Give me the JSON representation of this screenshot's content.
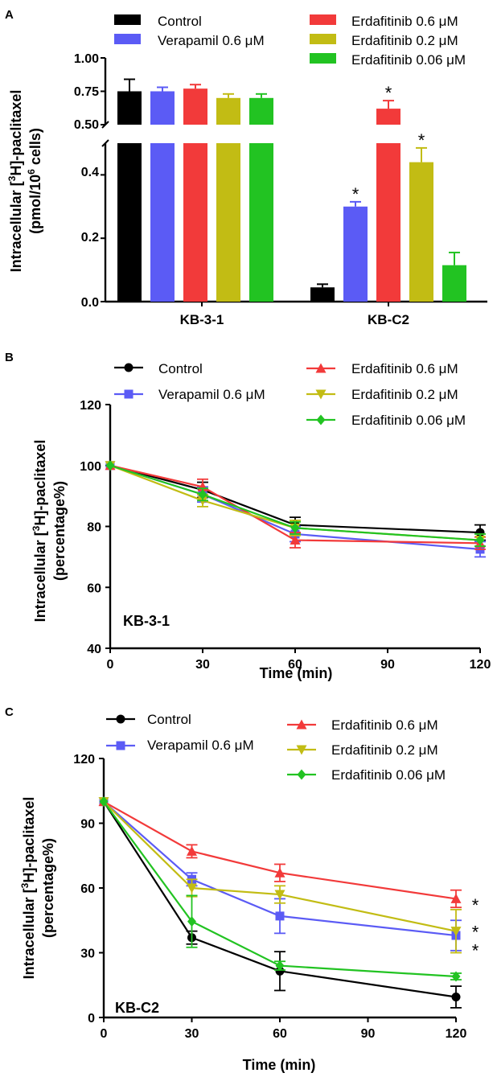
{
  "panel_labels": [
    "A",
    "B",
    "C"
  ],
  "colors": {
    "control": "#000000",
    "verapamil": "#5b5bf5",
    "erda06": "#f23a3a",
    "erda02": "#c2bc14",
    "erda006": "#22c322"
  },
  "chart_data": [
    {
      "type": "bar",
      "panel": "A",
      "ylabel_line1": "Intracellular [",
      "ylabel_sup1": "3",
      "ylabel_line1b": "H]-paclitaxel",
      "ylabel_line2a": "(pmol/10",
      "ylabel_sup2": "6",
      "ylabel_line2b": " cells)",
      "categories": [
        "KB-3-1",
        "KB-C2"
      ],
      "legend": [
        {
          "name": "Control",
          "key": "control"
        },
        {
          "name": "Verapamil 0.6 μM",
          "key": "verapamil"
        },
        {
          "name": "Erdafitinib 0.6 μM",
          "key": "erda06"
        },
        {
          "name": "Erdafitinib 0.2 μM",
          "key": "erda02"
        },
        {
          "name": "Erdafitinib 0.06 μM",
          "key": "erda006"
        }
      ],
      "series": [
        {
          "name": "Control",
          "key": "control",
          "values": [
            0.75,
            0.045
          ],
          "errors": [
            0.09,
            0.01
          ]
        },
        {
          "name": "Verapamil 0.6 μM",
          "key": "verapamil",
          "values": [
            0.75,
            0.3
          ],
          "errors": [
            0.03,
            0.015
          ]
        },
        {
          "name": "Erdafitinib 0.6 μM",
          "key": "erda06",
          "values": [
            0.77,
            0.62
          ],
          "errors": [
            0.03,
            0.06
          ]
        },
        {
          "name": "Erdafitinib 0.2 μM",
          "key": "erda02",
          "values": [
            0.7,
            0.44
          ],
          "errors": [
            0.03,
            0.045
          ]
        },
        {
          "name": "Erdafitinib 0.06 μM",
          "key": "erda006",
          "values": [
            0.7,
            0.115
          ],
          "errors": [
            0.03,
            0.04
          ]
        }
      ],
      "significant": [
        [
          false,
          false
        ],
        [
          false,
          true
        ],
        [
          false,
          true
        ],
        [
          false,
          true
        ],
        [
          false,
          false
        ]
      ],
      "star": "*",
      "axis_break": {
        "lower_range": [
          0,
          0.5
        ],
        "upper_range": [
          0.5,
          1.0
        ]
      },
      "lower_ticks": [
        "0.0",
        "0.2",
        "0.4"
      ],
      "upper_ticks": [
        "0.50",
        "0.75",
        "1.00"
      ]
    },
    {
      "type": "line",
      "panel": "B",
      "ylabel_line1": "Intracellular [",
      "ylabel_sup1": "3",
      "ylabel_line1b": "H]-paclitaxel",
      "ylabel_line2": "(percentage%)",
      "xlabel": "Time (min)",
      "annotation": "KB-3-1",
      "x": [
        0,
        30,
        60,
        120
      ],
      "xlim": [
        0,
        120
      ],
      "ylim": [
        40,
        120
      ],
      "xticks": [
        "0",
        "30",
        "60",
        "90",
        "120"
      ],
      "yticks": [
        "40",
        "60",
        "80",
        "100",
        "120"
      ],
      "series": [
        {
          "name": "Control",
          "key": "control",
          "marker": "circle",
          "values": [
            100,
            92,
            80.5,
            78
          ],
          "errors": [
            0,
            2.5,
            2.5,
            2.5
          ]
        },
        {
          "name": "Verapamil 0.6 μM",
          "key": "verapamil",
          "marker": "square",
          "values": [
            100,
            90.5,
            77.5,
            72.5
          ],
          "errors": [
            0,
            2.5,
            2.5,
            2.5
          ]
        },
        {
          "name": "Erdafitinib 0.6 μM",
          "key": "erda06",
          "marker": "triangle",
          "values": [
            100,
            93,
            75.5,
            74.5
          ],
          "errors": [
            0,
            2.5,
            2.5,
            2
          ]
        },
        {
          "name": "Erdafitinib 0.2 μM",
          "key": "erda02",
          "marker": "triangle-down",
          "values": [
            100,
            88.5,
            79.5,
            75.5
          ],
          "errors": [
            0,
            2,
            2.5,
            2
          ]
        },
        {
          "name": "Erdafitinib 0.06 μM",
          "key": "erda006",
          "marker": "diamond",
          "values": [
            100,
            90.5,
            79.5,
            75.5
          ],
          "errors": [
            0,
            2,
            2,
            2
          ]
        }
      ],
      "legend": [
        {
          "name": "Control",
          "key": "control",
          "marker": "circle"
        },
        {
          "name": "Verapamil 0.6 μM",
          "key": "verapamil",
          "marker": "square"
        },
        {
          "name": "Erdafitinib 0.6 μM",
          "key": "erda06",
          "marker": "triangle"
        },
        {
          "name": "Erdafitinib 0.2 μM",
          "key": "erda02",
          "marker": "triangle-down"
        },
        {
          "name": "Erdafitinib 0.06 μM",
          "key": "erda006",
          "marker": "diamond"
        }
      ]
    },
    {
      "type": "line",
      "panel": "C",
      "ylabel_line1": "Intracellular [",
      "ylabel_sup1": "3",
      "ylabel_line1b": "H]-paclitaxel",
      "ylabel_line2": "(percentage%)",
      "xlabel": "Time (min)",
      "annotation": "KB-C2",
      "x": [
        0,
        30,
        60,
        120
      ],
      "xlim": [
        0,
        120
      ],
      "ylim": [
        0,
        120
      ],
      "xticks": [
        "0",
        "30",
        "60",
        "90",
        "120"
      ],
      "yticks": [
        "0",
        "30",
        "60",
        "90",
        "120"
      ],
      "series": [
        {
          "name": "Control",
          "key": "control",
          "marker": "circle",
          "values": [
            100,
            37,
            21.5,
            9.5
          ],
          "errors": [
            0,
            3,
            9,
            5
          ]
        },
        {
          "name": "Verapamil 0.6 μM",
          "key": "verapamil",
          "marker": "square",
          "values": [
            100,
            64,
            47,
            38
          ],
          "errors": [
            0,
            3,
            8,
            7
          ]
        },
        {
          "name": "Erdafitinib 0.6 μM",
          "key": "erda06",
          "marker": "triangle",
          "values": [
            100,
            77,
            67,
            55
          ],
          "errors": [
            0,
            3,
            4,
            4
          ]
        },
        {
          "name": "Erdafitinib 0.2 μM",
          "key": "erda02",
          "marker": "triangle-down",
          "values": [
            100,
            60,
            57,
            40
          ],
          "errors": [
            0,
            4,
            4,
            10
          ]
        },
        {
          "name": "Erdafitinib 0.06 μM",
          "key": "erda006",
          "marker": "diamond",
          "values": [
            100,
            44.5,
            24,
            19
          ],
          "errors": [
            0,
            12,
            2,
            1.5
          ]
        }
      ],
      "stars": [
        {
          "key": "erda06",
          "value": 54,
          "label": "*"
        },
        {
          "key": "erda02",
          "value": 41.5,
          "label": "*"
        },
        {
          "key": "verapamil",
          "value": 33,
          "label": "*"
        }
      ],
      "legend": [
        {
          "name": "Control",
          "key": "control",
          "marker": "circle"
        },
        {
          "name": "Verapamil 0.6 μM",
          "key": "verapamil",
          "marker": "square"
        },
        {
          "name": "Erdafitinib 0.6 μM",
          "key": "erda06",
          "marker": "triangle"
        },
        {
          "name": "Erdafitinib 0.2 μM",
          "key": "erda02",
          "marker": "triangle-down"
        },
        {
          "name": "Erdafitinib 0.06 μM",
          "key": "erda006",
          "marker": "diamond"
        }
      ]
    }
  ]
}
